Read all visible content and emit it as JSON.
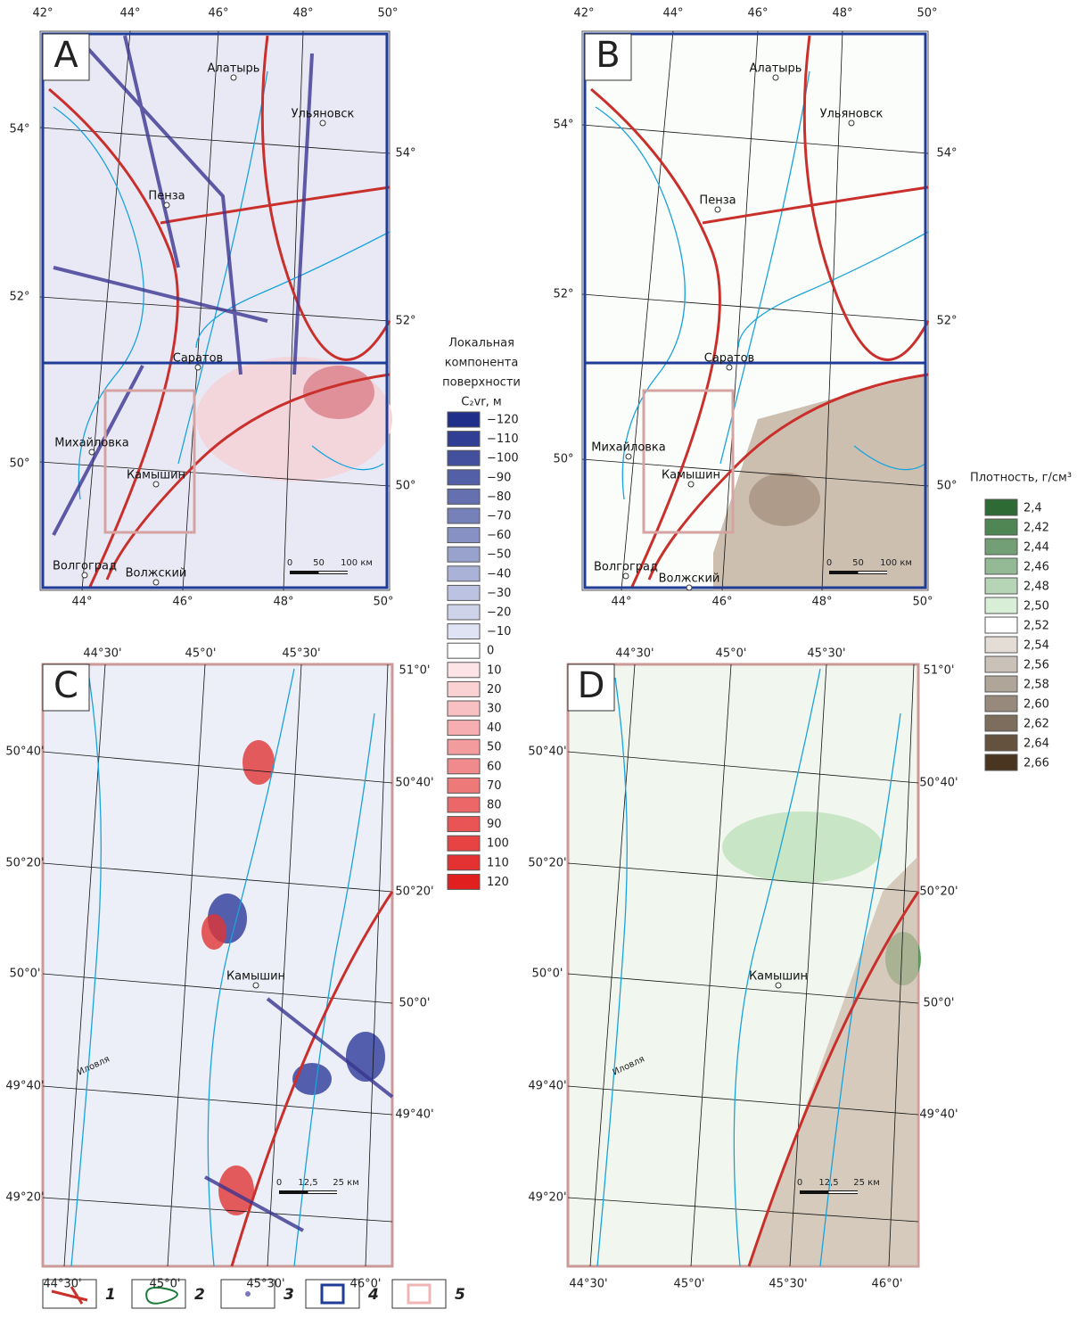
{
  "panels": [
    {
      "letter": "A",
      "top_labels": [
        "42°",
        "44°",
        "46°",
        "48°",
        "50°"
      ],
      "bottom_labels": [
        "44°",
        "46°",
        "48°",
        "50°"
      ],
      "left_labels": [
        "54°",
        "52°",
        "50°"
      ],
      "right_labels": [
        "54°",
        "52°",
        "50°"
      ],
      "cities": [
        "Алатырь",
        "Ульяновск",
        "Пенза",
        "Саратов",
        "Михайловка",
        "Камышин",
        "Волгоград",
        "Волжский"
      ],
      "scale": [
        "0",
        "50",
        "100 км"
      ]
    },
    {
      "letter": "B",
      "top_labels": [
        "42°",
        "44°",
        "46°",
        "48°",
        "50°"
      ],
      "bottom_labels": [
        "44°",
        "46°",
        "48°",
        "50°"
      ],
      "left_labels": [
        "54°",
        "52°",
        "50°"
      ],
      "right_labels": [
        "54°",
        "52°",
        "50°"
      ],
      "cities": [
        "Алатырь",
        "Ульяновск",
        "Пенза",
        "Саратов",
        "Михайловка",
        "Камышин",
        "Волгоград",
        "Волжский"
      ],
      "scale": [
        "0",
        "50",
        "100 км"
      ]
    },
    {
      "letter": "C",
      "top_labels": [
        "44°30'",
        "45°0'",
        "45°30'"
      ],
      "bottom_labels": [
        "44°30'",
        "45°0'",
        "45°30'",
        "46°0'"
      ],
      "left_labels": [
        "50°40'",
        "50°20'",
        "50°0'",
        "49°40'",
        "49°20'"
      ],
      "right_labels": [
        "51°0'",
        "50°40'",
        "50°20'",
        "50°0'",
        "49°40'"
      ],
      "cities": [
        "Камышин",
        "Иловля"
      ],
      "scale": [
        "0",
        "12,5",
        "25 км"
      ]
    },
    {
      "letter": "D",
      "top_labels": [
        "44°30'",
        "45°0'",
        "45°30'"
      ],
      "bottom_labels": [
        "44°30'",
        "45°0'",
        "45°30'",
        "46°0'"
      ],
      "left_labels": [
        "50°40'",
        "50°20'",
        "50°0'",
        "49°40'",
        "49°20'"
      ],
      "right_labels": [
        "51°0'",
        "50°40'",
        "50°20'",
        "50°0'",
        "49°40'"
      ],
      "cities": [
        "Камышин",
        "Иловля"
      ],
      "scale": [
        "0",
        "12,5",
        "25 км"
      ]
    }
  ],
  "legend_relief": {
    "title": [
      "Локальная",
      "компонента",
      "поверхности",
      "C₂vr, м"
    ],
    "levels": [
      "−120",
      "−110",
      "−100",
      "−90",
      "−80",
      "−70",
      "−60",
      "−50",
      "−40",
      "−30",
      "−20",
      "−10",
      "0",
      "10",
      "20",
      "30",
      "40",
      "50",
      "60",
      "70",
      "80",
      "90",
      "100",
      "110",
      "120"
    ]
  },
  "legend_density": {
    "title": "Плотность, г/см³",
    "levels": [
      "2,4",
      "2,42",
      "2,44",
      "2,46",
      "2,48",
      "2,50",
      "2,52",
      "2,54",
      "2,56",
      "2,58",
      "2,60",
      "2,62",
      "2,64",
      "2,66"
    ]
  },
  "key": [
    "1",
    "2",
    "3",
    "4",
    "5"
  ]
}
